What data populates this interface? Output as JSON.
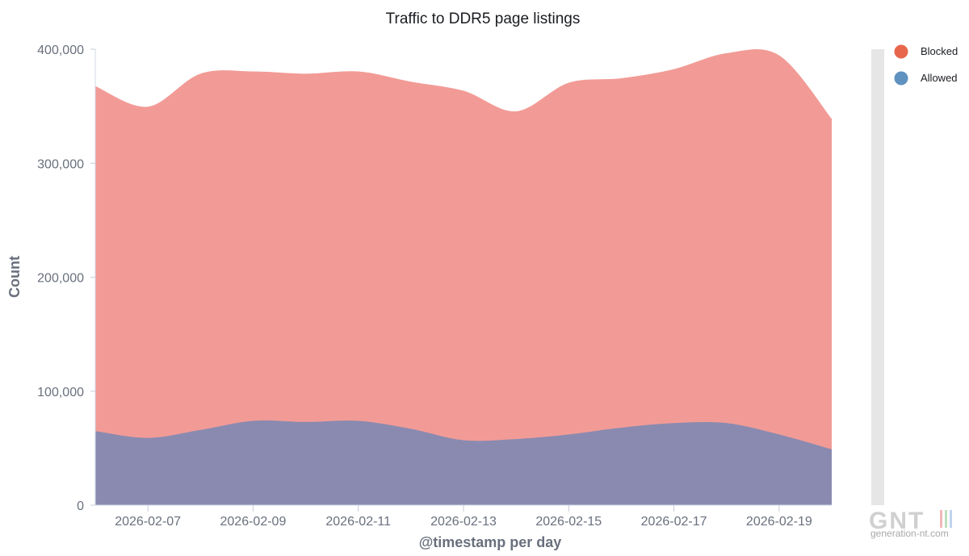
{
  "chart_data": {
    "type": "area",
    "title": "Traffic to DDR5 page listings",
    "xlabel": "@timestamp per day",
    "ylabel": "Count",
    "x": [
      "2026-02-06",
      "2026-02-07",
      "2026-02-08",
      "2026-02-09",
      "2026-02-10",
      "2026-02-11",
      "2026-02-12",
      "2026-02-13",
      "2026-02-14",
      "2026-02-15",
      "2026-02-16",
      "2026-02-17",
      "2026-02-18",
      "2026-02-19",
      "2026-02-20"
    ],
    "x_tick_labels": [
      "2026-02-07",
      "2026-02-09",
      "2026-02-11",
      "2026-02-13",
      "2026-02-15",
      "2026-02-17",
      "2026-02-19"
    ],
    "y_tick_labels": [
      "0",
      "100,000",
      "200,000",
      "300,000",
      "400,000"
    ],
    "ylim": [
      0,
      400000
    ],
    "stacked": true,
    "grid": false,
    "legend_position": "right",
    "series": [
      {
        "name": "Allowed",
        "color": "#6092c0",
        "fill": "#8a8ab0",
        "values": [
          65000,
          59000,
          66000,
          74000,
          73000,
          74000,
          67000,
          57000,
          58000,
          62000,
          68000,
          72000,
          72000,
          62000,
          49000
        ]
      },
      {
        "name": "Blocked",
        "color": "#e7664c",
        "fill": "#f29b96",
        "values": [
          302000,
          290000,
          312000,
          306000,
          305000,
          306000,
          304000,
          306000,
          287000,
          308000,
          306000,
          310000,
          324000,
          332000,
          289000
        ]
      }
    ]
  },
  "watermark": {
    "logo": "GNT",
    "site": "generation-nt.com"
  }
}
